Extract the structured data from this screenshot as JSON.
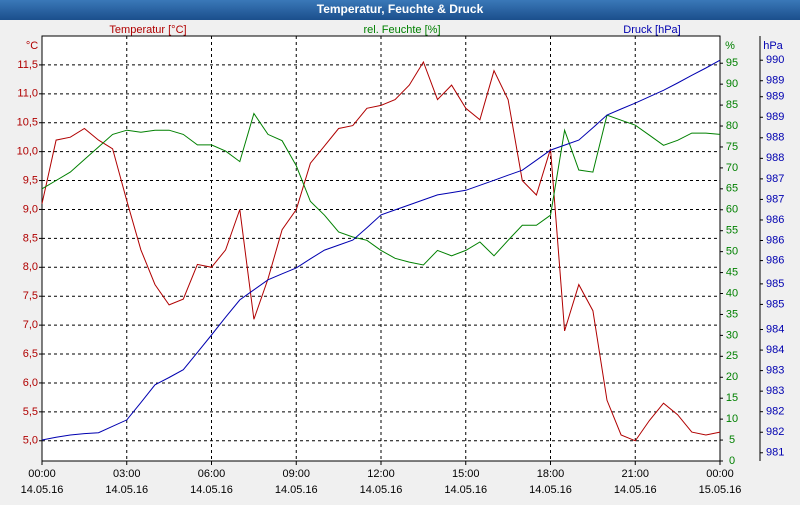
{
  "chart_data": {
    "type": "line",
    "title": "Temperatur, Feuchte & Druck",
    "ylabel": "°C",
    "y2label": "%",
    "y3label": "hPa",
    "x": [
      0,
      0.5,
      1,
      1.5,
      2,
      2.5,
      3,
      3.5,
      4,
      4.5,
      5,
      5.5,
      6,
      6.5,
      7,
      7.5,
      8,
      8.5,
      9,
      9.5,
      10,
      10.5,
      11,
      11.5,
      12,
      12.5,
      13,
      13.5,
      14,
      14.5,
      15,
      15.5,
      16,
      16.5,
      17,
      17.5,
      18,
      18.5,
      19,
      19.5,
      20,
      20.5,
      21,
      21.5,
      22,
      22.5,
      23,
      23.5,
      24
    ],
    "xlim": [
      0,
      24
    ],
    "xticks": [
      {
        "value": 0,
        "label": "00:00",
        "date": "14.05.16"
      },
      {
        "value": 3,
        "label": "03:00",
        "date": "14.05.16"
      },
      {
        "value": 6,
        "label": "06:00",
        "date": "14.05.16"
      },
      {
        "value": 9,
        "label": "09:00",
        "date": "14.05.16"
      },
      {
        "value": 12,
        "label": "12:00",
        "date": "14.05.16"
      },
      {
        "value": 15,
        "label": "15:00",
        "date": "14.05.16"
      },
      {
        "value": 18,
        "label": "18:00",
        "date": "14.05.16"
      },
      {
        "value": 21,
        "label": "21:00",
        "date": "14.05.16"
      },
      {
        "value": 24,
        "label": "00:00",
        "date": "15.05.16"
      }
    ],
    "ylim": [
      4.65,
      12.0
    ],
    "yticks": [
      {
        "value": 5,
        "label": "5,0"
      },
      {
        "value": 5.5,
        "label": "5,5"
      },
      {
        "value": 6,
        "label": "6,0"
      },
      {
        "value": 6.5,
        "label": "6,5"
      },
      {
        "value": 7,
        "label": "7,0"
      },
      {
        "value": 7.5,
        "label": "7,5"
      },
      {
        "value": 8,
        "label": "8,0"
      },
      {
        "value": 8.5,
        "label": "8,5"
      },
      {
        "value": 9,
        "label": "9,0"
      },
      {
        "value": 9.5,
        "label": "9,5"
      },
      {
        "value": 10,
        "label": "10,0"
      },
      {
        "value": 10.5,
        "label": "10,5"
      },
      {
        "value": 11,
        "label": "11,0"
      },
      {
        "value": 11.5,
        "label": "11,5"
      }
    ],
    "y2lim": [
      0,
      101.5
    ],
    "y2ticks": [
      0,
      5,
      10,
      15,
      20,
      25,
      30,
      35,
      40,
      45,
      50,
      55,
      60,
      65,
      70,
      75,
      80,
      85,
      90,
      95
    ],
    "y3lim": [
      981.12,
      990.43
    ],
    "y3ticks": [
      {
        "value": 981.3,
        "label": "981"
      },
      {
        "value": 981.75,
        "label": "982"
      },
      {
        "value": 982.2,
        "label": "982"
      },
      {
        "value": 982.65,
        "label": "983"
      },
      {
        "value": 983.1,
        "label": "983"
      },
      {
        "value": 983.55,
        "label": "984"
      },
      {
        "value": 984.0,
        "label": "984"
      },
      {
        "value": 984.55,
        "label": "985"
      },
      {
        "value": 985.0,
        "label": "985"
      },
      {
        "value": 985.51,
        "label": "986"
      },
      {
        "value": 985.95,
        "label": "986"
      },
      {
        "value": 986.4,
        "label": "986"
      },
      {
        "value": 986.85,
        "label": "987"
      },
      {
        "value": 987.3,
        "label": "987"
      },
      {
        "value": 987.75,
        "label": "988"
      },
      {
        "value": 988.2,
        "label": "988"
      },
      {
        "value": 988.65,
        "label": "989"
      },
      {
        "value": 989.1,
        "label": "989"
      },
      {
        "value": 989.45,
        "label": "989"
      },
      {
        "value": 989.9,
        "label": "990"
      }
    ],
    "grid": true,
    "series": [
      {
        "name": "Temperatur [°C]",
        "color": "#b00000",
        "axis": "y",
        "values": [
          9.1,
          10.2,
          10.25,
          10.4,
          10.2,
          10.05,
          9.15,
          8.3,
          7.7,
          7.35,
          7.45,
          8.05,
          8.0,
          8.3,
          9.0,
          7.1,
          7.8,
          8.65,
          9.0,
          9.8,
          10.1,
          10.4,
          10.45,
          10.75,
          10.8,
          10.9,
          11.15,
          11.55,
          10.9,
          11.15,
          10.75,
          10.55,
          11.4,
          10.9,
          9.5,
          9.25,
          10.05,
          6.9,
          7.7,
          7.25,
          5.7,
          5.1,
          5.0,
          5.35,
          5.65,
          5.45,
          5.15,
          5.1,
          5.15
        ]
      },
      {
        "name": "rel. Feuchte [%]",
        "color": "#008000",
        "axis": "y2",
        "values": [
          65,
          67,
          69,
          72,
          75,
          78,
          79,
          78.5,
          79,
          79,
          78,
          75.5,
          75.5,
          74,
          71.5,
          83,
          78,
          76.5,
          70.5,
          62,
          58.7,
          54.7,
          53.5,
          52.7,
          50.3,
          48.4,
          47.5,
          46.8,
          50.3,
          49,
          50.3,
          52.3,
          49,
          52.7,
          56.3,
          56.3,
          58.7,
          79,
          69.5,
          69,
          82.6,
          81.4,
          80.2,
          77.8,
          75.4,
          76.6,
          78.3,
          78.3,
          78
        ]
      },
      {
        "name": "Druck [hPa]",
        "color": "#0000b0",
        "axis": "y3",
        "values": [
          981.58,
          981.64,
          981.69,
          981.72,
          981.74,
          981.88,
          982.02,
          982.4,
          982.79,
          982.95,
          983.12,
          983.5,
          983.88,
          984.27,
          984.65,
          984.87,
          985.09,
          985.22,
          985.35,
          985.55,
          985.74,
          985.85,
          985.96,
          986.23,
          986.51,
          986.62,
          986.73,
          986.84,
          986.95,
          987.0,
          987.05,
          987.16,
          987.27,
          987.38,
          987.49,
          987.71,
          987.93,
          988.04,
          988.15,
          988.42,
          988.7,
          988.83,
          988.96,
          989.1,
          989.24,
          989.4,
          989.57,
          989.73,
          989.9
        ]
      }
    ]
  }
}
